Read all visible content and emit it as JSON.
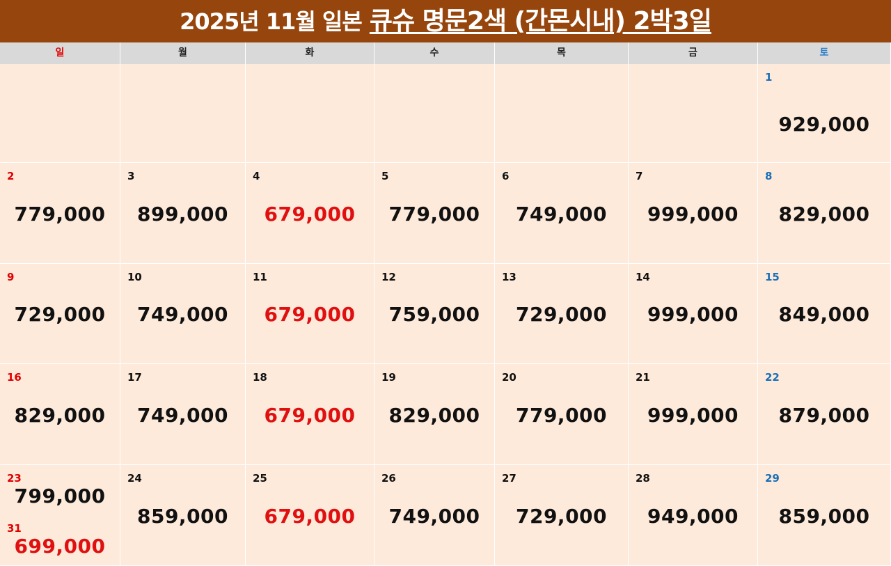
{
  "title": {
    "prefix": "2025년 11월 일본",
    "main": "큐슈 명문2색 (간몬시내) 2박3일"
  },
  "weekdays": [
    "일",
    "월",
    "화",
    "수",
    "목",
    "금",
    "토"
  ],
  "colors": {
    "title_bg": "#96450d",
    "cell_bg": "#fdeadb",
    "header_bg": "#d9d9d9",
    "sunday": "#e00000",
    "saturday": "#1a6fb7",
    "highlight_price": "#e01010"
  },
  "weeks": [
    [
      {
        "day": "",
        "price": ""
      },
      {
        "day": "",
        "price": ""
      },
      {
        "day": "",
        "price": ""
      },
      {
        "day": "",
        "price": ""
      },
      {
        "day": "",
        "price": ""
      },
      {
        "day": "",
        "price": ""
      },
      {
        "day": "1",
        "price": "929,000"
      }
    ],
    [
      {
        "day": "2",
        "price": "779,000"
      },
      {
        "day": "3",
        "price": "899,000"
      },
      {
        "day": "4",
        "price": "679,000",
        "highlight": true
      },
      {
        "day": "5",
        "price": "779,000"
      },
      {
        "day": "6",
        "price": "749,000"
      },
      {
        "day": "7",
        "price": "999,000"
      },
      {
        "day": "8",
        "price": "829,000"
      }
    ],
    [
      {
        "day": "9",
        "price": "729,000"
      },
      {
        "day": "10",
        "price": "749,000"
      },
      {
        "day": "11",
        "price": "679,000",
        "highlight": true
      },
      {
        "day": "12",
        "price": "759,000"
      },
      {
        "day": "13",
        "price": "729,000"
      },
      {
        "day": "14",
        "price": "999,000"
      },
      {
        "day": "15",
        "price": "849,000"
      }
    ],
    [
      {
        "day": "16",
        "price": "829,000"
      },
      {
        "day": "17",
        "price": "749,000"
      },
      {
        "day": "18",
        "price": "679,000",
        "highlight": true
      },
      {
        "day": "19",
        "price": "829,000"
      },
      {
        "day": "20",
        "price": "779,000"
      },
      {
        "day": "21",
        "price": "999,000"
      },
      {
        "day": "22",
        "price": "879,000"
      }
    ],
    [
      {
        "day": "23",
        "price": "799,000",
        "extra_day": "31",
        "extra_price": "699,000"
      },
      {
        "day": "24",
        "price": "859,000"
      },
      {
        "day": "25",
        "price": "679,000",
        "highlight": true
      },
      {
        "day": "26",
        "price": "749,000"
      },
      {
        "day": "27",
        "price": "729,000"
      },
      {
        "day": "28",
        "price": "949,000"
      },
      {
        "day": "29",
        "price": "859,000"
      }
    ]
  ]
}
